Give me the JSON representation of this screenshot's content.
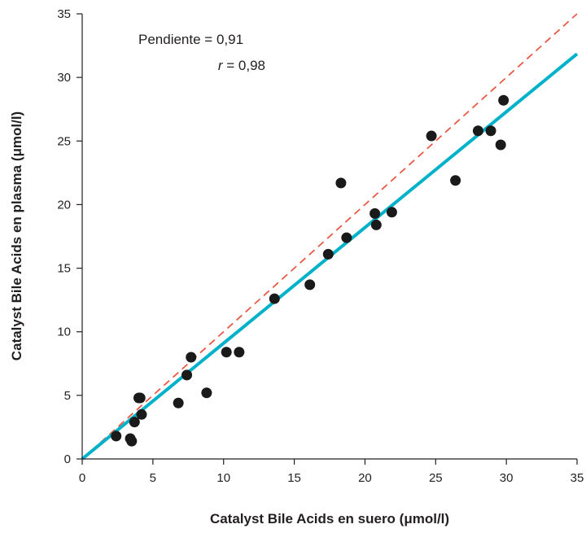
{
  "chart_data": {
    "type": "scatter",
    "xlabel": "Catalyst Bile Acids en suero (μmol/l)",
    "ylabel": "Catalyst Bile Acids en plasma (μmol/l)",
    "xlim": [
      0,
      35
    ],
    "ylim": [
      0,
      35
    ],
    "xticks": [
      "0",
      "5",
      "10",
      "15",
      "20",
      "25",
      "30",
      "35"
    ],
    "yticks": [
      "0",
      "5",
      "10",
      "15",
      "20",
      "25",
      "30",
      "35"
    ],
    "grid": false,
    "annotations": {
      "slope_label": "Pendiente",
      "slope_value": "0,91",
      "r_label": "r",
      "r_value": "0,98"
    },
    "regression_line": {
      "slope": 0.91,
      "intercept": 0,
      "color": "#00b2c9"
    },
    "identity_line": {
      "slope": 1,
      "intercept": 0,
      "color": "#e85a47",
      "style": "dashed"
    },
    "marker_color": "#1a1a1a",
    "points": [
      {
        "x": 2.4,
        "y": 1.8
      },
      {
        "x": 3.4,
        "y": 1.6
      },
      {
        "x": 3.5,
        "y": 1.4
      },
      {
        "x": 3.7,
        "y": 2.9
      },
      {
        "x": 4.0,
        "y": 4.8
      },
      {
        "x": 4.1,
        "y": 4.8
      },
      {
        "x": 4.2,
        "y": 3.5
      },
      {
        "x": 6.8,
        "y": 4.4
      },
      {
        "x": 7.4,
        "y": 6.6
      },
      {
        "x": 7.7,
        "y": 8.0
      },
      {
        "x": 8.8,
        "y": 5.2
      },
      {
        "x": 10.2,
        "y": 8.4
      },
      {
        "x": 11.1,
        "y": 8.4
      },
      {
        "x": 13.6,
        "y": 12.6
      },
      {
        "x": 16.1,
        "y": 13.7
      },
      {
        "x": 17.4,
        "y": 16.1
      },
      {
        "x": 18.3,
        "y": 21.7
      },
      {
        "x": 18.7,
        "y": 17.4
      },
      {
        "x": 20.7,
        "y": 19.3
      },
      {
        "x": 20.8,
        "y": 18.4
      },
      {
        "x": 21.9,
        "y": 19.4
      },
      {
        "x": 24.7,
        "y": 25.4
      },
      {
        "x": 26.4,
        "y": 21.9
      },
      {
        "x": 28.0,
        "y": 25.8
      },
      {
        "x": 28.9,
        "y": 25.8
      },
      {
        "x": 29.6,
        "y": 24.7
      },
      {
        "x": 29.8,
        "y": 28.2
      }
    ]
  }
}
